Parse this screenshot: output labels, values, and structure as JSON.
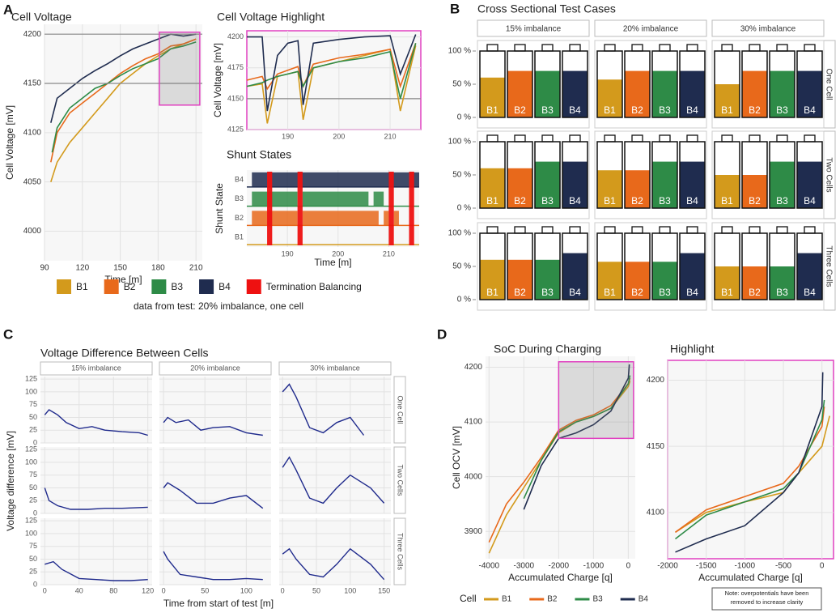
{
  "panel_labels": [
    "A",
    "B",
    "C",
    "D"
  ],
  "legend_note": "data from test: 20% imbalance, one cell",
  "chart_data": [
    {
      "type": "line",
      "title": "Cell Voltage",
      "x_label": "Time [m]",
      "y_label": "Cell Voltage [mV]",
      "xlim": [
        90,
        215
      ],
      "xticks": [
        90,
        120,
        150,
        180,
        210
      ],
      "ylim": [
        3970,
        4210
      ],
      "yticks": [
        4000,
        4050,
        4100,
        4150,
        4200
      ],
      "grid": true,
      "reference_lines": [
        4150,
        4200
      ],
      "highlight_box": {
        "xlim": [
          181,
          213
        ],
        "ylim": [
          4128,
          4202
        ],
        "color": "#e040c0"
      },
      "series": [
        {
          "name": "B1",
          "color": "#d39a1c",
          "x": [
            95,
            100,
            110,
            120,
            130,
            140,
            150,
            160,
            170,
            180,
            190,
            200,
            210
          ],
          "values": [
            4050,
            4070,
            4090,
            4105,
            4120,
            4135,
            4150,
            4160,
            4170,
            4178,
            4185,
            4190,
            4195
          ]
        },
        {
          "name": "B2",
          "color": "#e8691b",
          "x": [
            95,
            100,
            110,
            120,
            130,
            140,
            150,
            160,
            170,
            180,
            190,
            200,
            210
          ],
          "values": [
            4070,
            4100,
            4120,
            4130,
            4140,
            4150,
            4160,
            4168,
            4175,
            4180,
            4188,
            4190,
            4195
          ]
        },
        {
          "name": "B3",
          "color": "#2e8b47",
          "x": [
            96,
            100,
            110,
            120,
            130,
            140,
            150,
            160,
            170,
            180,
            190,
            200,
            210
          ],
          "values": [
            4080,
            4105,
            4125,
            4135,
            4145,
            4150,
            4158,
            4165,
            4170,
            4175,
            4185,
            4188,
            4192
          ]
        },
        {
          "name": "B4",
          "color": "#1f2c4f",
          "x": [
            95,
            100,
            110,
            120,
            130,
            140,
            150,
            160,
            170,
            180,
            190,
            200,
            210
          ],
          "values": [
            4110,
            4135,
            4145,
            4155,
            4163,
            4170,
            4178,
            4185,
            4190,
            4195,
            4200,
            4198,
            4200
          ]
        }
      ]
    },
    {
      "type": "line",
      "title": "Cell Voltage Highlight",
      "y_label": "Cell Voltage [mV]",
      "xlim": [
        182,
        216
      ],
      "xticks": [
        190,
        200,
        210
      ],
      "ylim": [
        4125,
        4205
      ],
      "yticks": [
        4125,
        4150,
        4175,
        4200
      ],
      "grid": true,
      "reference_lines": [
        4150
      ],
      "border_color": "#e040c0",
      "series": [
        {
          "name": "B1",
          "color": "#d39a1c",
          "x": [
            182,
            185,
            186,
            188,
            190,
            192,
            193,
            195,
            200,
            205,
            210,
            212,
            215
          ],
          "values": [
            4160,
            4162,
            4130,
            4168,
            4170,
            4172,
            4133,
            4175,
            4180,
            4185,
            4190,
            4140,
            4193
          ]
        },
        {
          "name": "B2",
          "color": "#e8691b",
          "x": [
            182,
            185,
            186,
            188,
            190,
            192,
            193,
            195,
            200,
            205,
            210,
            212,
            215
          ],
          "values": [
            4165,
            4168,
            4158,
            4170,
            4173,
            4176,
            4160,
            4178,
            4183,
            4186,
            4190,
            4160,
            4195
          ]
        },
        {
          "name": "B3",
          "color": "#2e8b47",
          "x": [
            182,
            185,
            186,
            188,
            190,
            192,
            193,
            195,
            200,
            205,
            210,
            212,
            215
          ],
          "values": [
            4160,
            4163,
            4165,
            4168,
            4170,
            4172,
            4160,
            4175,
            4180,
            4183,
            4188,
            4150,
            4195
          ]
        },
        {
          "name": "B4",
          "color": "#1f2c4f",
          "x": [
            182,
            185,
            186,
            188,
            190,
            192,
            193,
            195,
            200,
            205,
            210,
            212,
            215
          ],
          "values": [
            4200,
            4200,
            4140,
            4185,
            4195,
            4197,
            4145,
            4195,
            4198,
            4200,
            4201,
            4170,
            4202
          ]
        }
      ]
    },
    {
      "type": "timeline",
      "title": "Shunt States",
      "x_label": "Time [m]",
      "y_label": "Shunt State",
      "xlim": [
        182,
        216
      ],
      "xticks": [
        190,
        200,
        210
      ],
      "categories": [
        "B1",
        "B2",
        "B3",
        "B4"
      ],
      "series": [
        {
          "name": "B1",
          "color": "#d39a1c",
          "intervals": []
        },
        {
          "name": "B2",
          "color": "#e8691b",
          "intervals": [
            [
              183,
              192
            ],
            [
              193,
              208
            ],
            [
              209,
              210
            ],
            [
              211,
              212
            ]
          ]
        },
        {
          "name": "B3",
          "color": "#2e8b47",
          "intervals": [
            [
              183,
              192
            ],
            [
              193,
              206
            ],
            [
              207,
              209
            ]
          ]
        },
        {
          "name": "B4",
          "color": "#1f2c4f",
          "intervals": [
            [
              183,
              216
            ]
          ]
        },
        {
          "name": "Termination Balancing",
          "color": "#ee1111",
          "intervals": [
            [
              186,
              187
            ],
            [
              192,
              193
            ],
            [
              210,
              211
            ],
            [
              214,
              215
            ]
          ]
        }
      ]
    },
    {
      "type": "battery_grid",
      "title": "Cross Sectional  Test Cases",
      "columns": [
        "15% imbalance",
        "20% imbalance",
        "30% imbalance"
      ],
      "rows": [
        "One Cell",
        "Two Cells",
        "Three Cells"
      ],
      "ylim": [
        0,
        100
      ],
      "yticks": [
        {
          "value": 0,
          "label": "0 %"
        },
        {
          "value": 50,
          "label": "50 %"
        },
        {
          "value": 100,
          "label": "100 %"
        }
      ],
      "series": [
        {
          "name": "B1",
          "color": "#d39a1c"
        },
        {
          "name": "B2",
          "color": "#e8691b"
        },
        {
          "name": "B3",
          "color": "#2e8b47"
        },
        {
          "name": "B4",
          "color": "#1f2c4f"
        }
      ],
      "values": [
        [
          [
            60,
            70,
            70,
            70
          ],
          [
            57,
            70,
            70,
            70
          ],
          [
            50,
            70,
            70,
            70
          ]
        ],
        [
          [
            60,
            60,
            70,
            70
          ],
          [
            57,
            57,
            70,
            70
          ],
          [
            50,
            50,
            70,
            70
          ]
        ],
        [
          [
            60,
            60,
            60,
            70
          ],
          [
            57,
            57,
            57,
            70
          ],
          [
            50,
            50,
            50,
            70
          ]
        ]
      ]
    },
    {
      "type": "facet_line",
      "title": "Voltage Difference Between Cells",
      "x_label": "Time from start of test [m]",
      "y_label": "Voltage difference [mV]",
      "columns": [
        "15% imbalance",
        "20% imbalance",
        "30% imbalance"
      ],
      "rows": [
        "One Cell",
        "Two Cells",
        "Three Cells"
      ],
      "color": "#1f2a8c",
      "ylim": [
        0,
        130
      ],
      "yticks": [
        0,
        25,
        50,
        75,
        100,
        125
      ],
      "xlim_by_column": [
        [
          -5,
          125
        ],
        [
          -5,
          130
        ],
        [
          -5,
          160
        ]
      ],
      "xticks_by_column": [
        [
          0,
          40,
          80,
          120
        ],
        [
          0,
          50,
          100
        ],
        [
          0,
          50,
          100,
          150
        ]
      ],
      "panels": [
        [
          {
            "x": [
              0,
              5,
              15,
              25,
              40,
              55,
              70,
              90,
              110,
              120
            ],
            "values": [
              55,
              65,
              55,
              40,
              28,
              32,
              25,
              22,
              20,
              15
            ]
          },
          {
            "x": [
              0,
              5,
              15,
              30,
              45,
              60,
              80,
              100,
              120
            ],
            "values": [
              40,
              50,
              40,
              45,
              25,
              30,
              32,
              20,
              15
            ]
          },
          {
            "x": [
              0,
              10,
              20,
              40,
              60,
              80,
              100,
              120
            ],
            "values": [
              100,
              115,
              90,
              30,
              20,
              40,
              50,
              15
            ]
          }
        ],
        [
          {
            "x": [
              0,
              5,
              15,
              30,
              50,
              70,
              90,
              120
            ],
            "values": [
              50,
              25,
              15,
              8,
              8,
              10,
              10,
              12
            ]
          },
          {
            "x": [
              0,
              5,
              20,
              40,
              60,
              80,
              100,
              120
            ],
            "values": [
              50,
              60,
              45,
              20,
              20,
              30,
              35,
              10
            ]
          },
          {
            "x": [
              0,
              10,
              20,
              40,
              60,
              80,
              100,
              130,
              150
            ],
            "values": [
              90,
              110,
              85,
              30,
              20,
              50,
              75,
              50,
              20
            ]
          }
        ],
        [
          {
            "x": [
              0,
              10,
              20,
              40,
              60,
              80,
              100,
              120
            ],
            "values": [
              40,
              45,
              30,
              12,
              10,
              8,
              8,
              10
            ]
          },
          {
            "x": [
              0,
              5,
              20,
              40,
              60,
              80,
              100,
              120
            ],
            "values": [
              65,
              50,
              20,
              15,
              10,
              10,
              12,
              10
            ]
          },
          {
            "x": [
              0,
              10,
              20,
              40,
              60,
              80,
              100,
              130,
              150
            ],
            "values": [
              60,
              70,
              50,
              20,
              15,
              40,
              70,
              40,
              10
            ]
          }
        ]
      ]
    },
    {
      "type": "line",
      "title": "SoC During Charging",
      "x_label": "Accumulated Charge [q]",
      "y_label": "Cell OCV [mV]",
      "xlim": [
        -4100,
        200
      ],
      "xticks": [
        -4000,
        -3000,
        -2000,
        -1000,
        0
      ],
      "ylim": [
        3850,
        4220
      ],
      "yticks": [
        3900,
        4000,
        4100,
        4200
      ],
      "grid": true,
      "highlight_box": {
        "xlim": [
          -2000,
          150
        ],
        "ylim": [
          4070,
          4210
        ],
        "color": "#e040c0"
      },
      "legend_title": "Cell",
      "series": [
        {
          "name": "B1",
          "color": "#d39a1c",
          "x": [
            -4000,
            -3500,
            -3000,
            -2500,
            -2000,
            -1500,
            -1000,
            -500,
            0,
            50
          ],
          "values": [
            3860,
            3930,
            3980,
            4030,
            4080,
            4100,
            4110,
            4125,
            4165,
            4175
          ]
        },
        {
          "name": "B2",
          "color": "#e8691b",
          "x": [
            -4000,
            -3500,
            -3000,
            -2500,
            -2000,
            -1500,
            -1000,
            -500,
            0,
            50
          ],
          "values": [
            3880,
            3950,
            3990,
            4035,
            4085,
            4103,
            4113,
            4130,
            4170,
            4180
          ]
        },
        {
          "name": "B3",
          "color": "#2e8b47",
          "x": [
            -3000,
            -2500,
            -2000,
            -1500,
            -1000,
            -500,
            0,
            50
          ],
          "values": [
            3960,
            4030,
            4082,
            4100,
            4110,
            4125,
            4170,
            4185
          ]
        },
        {
          "name": "B4",
          "color": "#1f2c4f",
          "x": [
            -3000,
            -2500,
            -2000,
            -1500,
            -1000,
            -500,
            0,
            30
          ],
          "values": [
            3940,
            4020,
            4070,
            4080,
            4095,
            4120,
            4180,
            4205
          ]
        }
      ]
    },
    {
      "type": "line",
      "title": "Highlight",
      "x_label": "Accumulated Charge [q]",
      "xlim": [
        -2000,
        150
      ],
      "xticks": [
        -2000,
        -1500,
        -1000,
        -500,
        0
      ],
      "ylim": [
        4065,
        4215
      ],
      "yticks": [
        4100,
        4150,
        4200
      ],
      "grid": true,
      "border_color": "#e040c0",
      "note": "Note: overpotentials have been removed to increase clarity",
      "series": [
        {
          "name": "B1",
          "color": "#d39a1c",
          "x": [
            -1900,
            -1500,
            -1000,
            -500,
            -300,
            0,
            100
          ],
          "values": [
            4085,
            4100,
            4108,
            4115,
            4130,
            4150,
            4173
          ]
        },
        {
          "name": "B2",
          "color": "#e8691b",
          "x": [
            -1900,
            -1500,
            -1000,
            -500,
            -300,
            0,
            30
          ],
          "values": [
            4085,
            4102,
            4112,
            4122,
            4135,
            4165,
            4180
          ]
        },
        {
          "name": "B3",
          "color": "#2e8b47",
          "x": [
            -1900,
            -1500,
            -1000,
            -500,
            -300,
            0,
            30
          ],
          "values": [
            4080,
            4098,
            4108,
            4118,
            4130,
            4170,
            4185
          ]
        },
        {
          "name": "B4",
          "color": "#1f2c4f",
          "x": [
            -1900,
            -1500,
            -1000,
            -500,
            -300,
            0,
            10
          ],
          "values": [
            4070,
            4080,
            4090,
            4115,
            4130,
            4180,
            4206
          ]
        }
      ]
    }
  ]
}
